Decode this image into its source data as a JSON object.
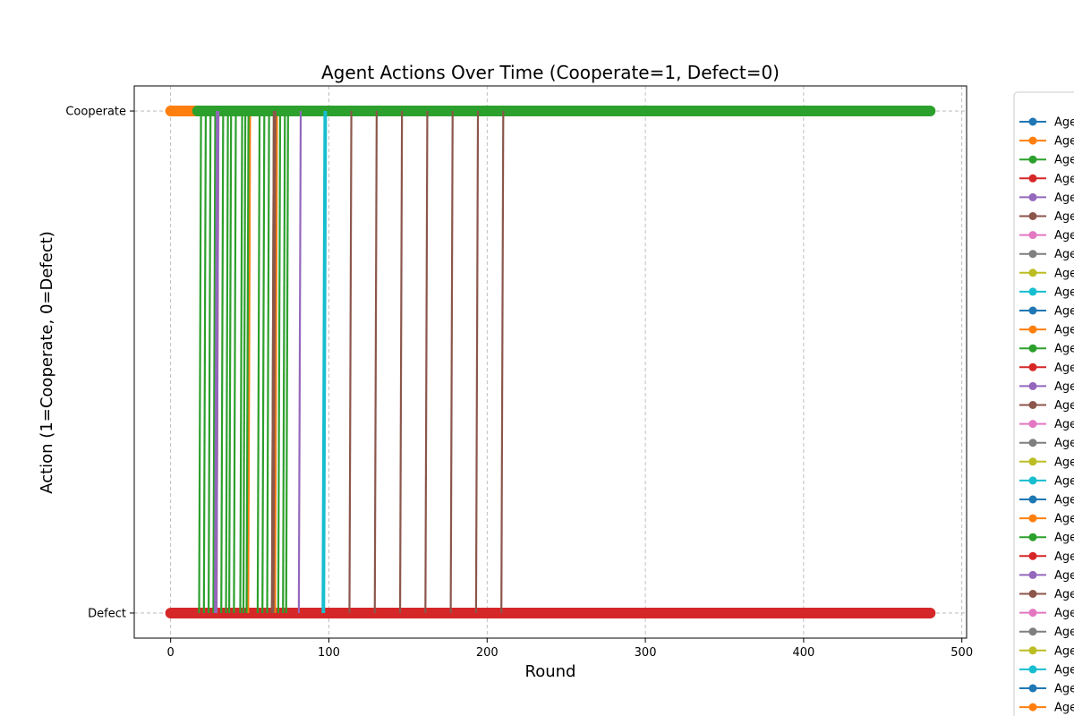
{
  "colors": {
    "palette": [
      "#1f77b4",
      "#ff7f0e",
      "#2ca02c",
      "#d62728",
      "#9467bd",
      "#8c564b",
      "#e377c2",
      "#7f7f7f",
      "#bcbd22",
      "#17becf"
    ],
    "grid": "#b0b0b0",
    "legend_border": "#cccccc"
  },
  "chart_data": {
    "type": "line",
    "title": "Agent Actions Over Time (Cooperate=1, Defect=0)",
    "xlabel": "Round",
    "ylabel": "Action (1=Cooperate, 0=Defect)",
    "xlim": [
      -23,
      503
    ],
    "ylim": [
      -0.05,
      1.05
    ],
    "xticks": [
      0,
      100,
      200,
      300,
      400,
      500
    ],
    "xtick_labels": [
      "0",
      "100",
      "200",
      "300",
      "400",
      "500"
    ],
    "yticks": [
      0,
      1
    ],
    "ytick_labels": [
      "Defect",
      "Cooperate"
    ],
    "grid": true,
    "grid_style": "dashed",
    "legend_position": "outside-right",
    "legend_visible_text": "Age",
    "legend_entry_count": 32,
    "rounds": [
      0,
      480
    ],
    "series": [
      {
        "color_index": 1,
        "cooperate_segments": [
          [
            0,
            18
          ]
        ],
        "switch_rounds": [
          29,
          49,
          66
        ]
      },
      {
        "color_index": 2,
        "cooperate_segments": [
          [
            17,
            480
          ]
        ],
        "switch_rounds": [
          18,
          21,
          24,
          27,
          32,
          35,
          37,
          40,
          44,
          46,
          48,
          55,
          58,
          61,
          64,
          68,
          71,
          73
        ]
      },
      {
        "color_index": 4,
        "cooperate_segments": [],
        "switch_rounds": [
          28,
          29,
          81
        ]
      },
      {
        "color_index": 5,
        "cooperate_segments": [],
        "switch_rounds": [
          64,
          65,
          113,
          129,
          145,
          161,
          177,
          193,
          209
        ]
      },
      {
        "color_index": 9,
        "cooperate_segments": [],
        "switch_rounds": [
          96,
          97
        ]
      },
      {
        "color_index": 3,
        "cooperate_segments": [],
        "switch_rounds": [],
        "defect_segments": [
          [
            0,
            480
          ]
        ]
      }
    ]
  }
}
